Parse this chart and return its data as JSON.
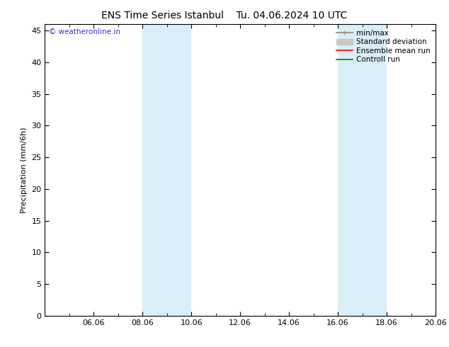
{
  "title_left": "ENS Time Series Istanbul",
  "title_right": "Tu. 04.06.2024 10 UTC",
  "ylabel": "Precipitation (mm/6h)",
  "ylim": [
    0,
    46
  ],
  "yticks": [
    0,
    5,
    10,
    15,
    20,
    25,
    30,
    35,
    40,
    45
  ],
  "xlim_start": 4,
  "xlim_end": 20,
  "xtick_labels": [
    "06.06",
    "08.06",
    "10.06",
    "12.06",
    "14.06",
    "16.06",
    "18.06",
    "20.06"
  ],
  "xtick_positions": [
    6,
    8,
    10,
    12,
    14,
    16,
    18,
    20
  ],
  "minor_xtick_positions": [
    5,
    7,
    9,
    11,
    13,
    15,
    17,
    19
  ],
  "shaded_bands": [
    {
      "x_start": 8,
      "x_end": 10
    },
    {
      "x_start": 16,
      "x_end": 18
    }
  ],
  "band_color": "#daeef7",
  "watermark": "© weatheronline.in",
  "watermark_color": "#3333cc",
  "legend_items": [
    {
      "label": "min/max",
      "color": "#999999",
      "lw": 1.5,
      "ls": "-",
      "type": "minmax"
    },
    {
      "label": "Standard deviation",
      "color": "#c8c8c8",
      "lw": 7,
      "ls": "-",
      "type": "band"
    },
    {
      "label": "Ensemble mean run",
      "color": "#ff0000",
      "lw": 1.2,
      "ls": "-",
      "type": "line"
    },
    {
      "label": "Controll run",
      "color": "#008000",
      "lw": 1.2,
      "ls": "-",
      "type": "line"
    }
  ],
  "bg_color": "#ffffff",
  "title_fontsize": 10,
  "ylabel_fontsize": 8,
  "tick_fontsize": 8,
  "legend_fontsize": 7.5,
  "watermark_fontsize": 7.5
}
